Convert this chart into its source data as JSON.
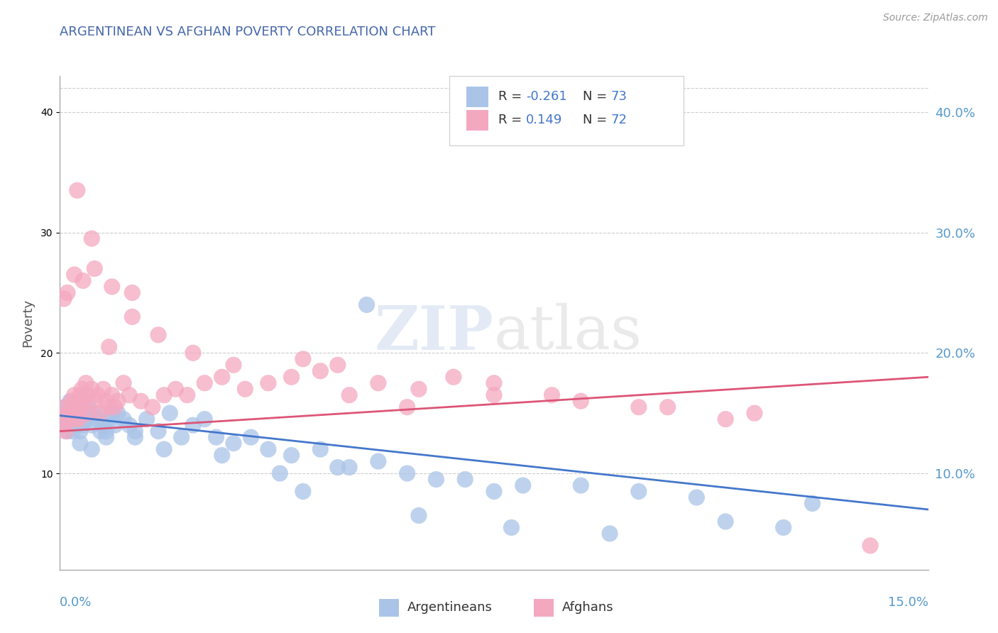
{
  "title": "ARGENTINEAN VS AFGHAN POVERTY CORRELATION CHART",
  "source": "Source: ZipAtlas.com",
  "ylabel": "Poverty",
  "xlim": [
    0.0,
    15.0
  ],
  "ylim": [
    2.0,
    43.0
  ],
  "yticks": [
    10.0,
    20.0,
    30.0,
    40.0
  ],
  "ytick_labels": [
    "10.0%",
    "20.0%",
    "30.0%",
    "40.0%"
  ],
  "blue_color": "#aac4e8",
  "pink_color": "#f4a8c0",
  "blue_line_color": "#4477cc",
  "pink_line_color": "#dd5577",
  "blue_trend_x": [
    0.0,
    15.0
  ],
  "blue_trend_y": [
    14.8,
    7.0
  ],
  "pink_trend_x": [
    0.0,
    15.0
  ],
  "pink_trend_y": [
    13.5,
    18.0
  ],
  "argentinean_x": [
    0.05,
    0.08,
    0.1,
    0.12,
    0.15,
    0.18,
    0.2,
    0.22,
    0.25,
    0.28,
    0.3,
    0.33,
    0.35,
    0.38,
    0.4,
    0.42,
    0.45,
    0.48,
    0.5,
    0.55,
    0.6,
    0.65,
    0.7,
    0.75,
    0.8,
    0.85,
    0.9,
    0.95,
    1.0,
    1.1,
    1.2,
    1.3,
    1.5,
    1.7,
    1.9,
    2.1,
    2.3,
    2.5,
    2.7,
    3.0,
    3.3,
    3.6,
    4.0,
    4.5,
    5.0,
    5.5,
    6.0,
    6.5,
    7.0,
    7.5,
    8.0,
    9.0,
    10.0,
    11.0,
    5.3,
    4.8,
    3.8,
    2.8,
    1.8,
    1.3,
    0.8,
    0.55,
    0.35,
    0.2,
    0.13,
    0.07,
    4.2,
    6.2,
    7.8,
    9.5,
    11.5,
    12.5,
    13.0
  ],
  "argentinean_y": [
    14.5,
    15.0,
    15.5,
    14.0,
    15.0,
    16.0,
    14.5,
    13.5,
    15.0,
    14.0,
    15.5,
    14.5,
    13.5,
    15.0,
    14.0,
    16.0,
    15.0,
    14.5,
    15.5,
    14.0,
    15.0,
    14.5,
    13.5,
    14.0,
    13.0,
    14.5,
    15.0,
    14.0,
    15.0,
    14.5,
    14.0,
    13.5,
    14.5,
    13.5,
    15.0,
    13.0,
    14.0,
    14.5,
    13.0,
    12.5,
    13.0,
    12.0,
    11.5,
    12.0,
    10.5,
    11.0,
    10.0,
    9.5,
    9.5,
    8.5,
    9.0,
    9.0,
    8.5,
    8.0,
    24.0,
    10.5,
    10.0,
    11.5,
    12.0,
    13.0,
    13.5,
    12.0,
    12.5,
    14.0,
    13.5,
    14.0,
    8.5,
    6.5,
    5.5,
    5.0,
    6.0,
    5.5,
    7.5
  ],
  "afghan_x": [
    0.05,
    0.08,
    0.1,
    0.12,
    0.15,
    0.18,
    0.2,
    0.22,
    0.25,
    0.28,
    0.3,
    0.33,
    0.35,
    0.38,
    0.4,
    0.42,
    0.45,
    0.48,
    0.5,
    0.55,
    0.6,
    0.65,
    0.7,
    0.75,
    0.8,
    0.85,
    0.9,
    0.95,
    1.0,
    1.1,
    1.2,
    1.4,
    1.6,
    1.8,
    2.0,
    2.2,
    2.5,
    2.8,
    3.2,
    3.6,
    4.0,
    4.5,
    5.0,
    5.5,
    6.0,
    6.8,
    7.5,
    8.5,
    10.0,
    11.5,
    3.0,
    2.3,
    1.7,
    1.25,
    0.9,
    0.6,
    0.4,
    0.25,
    0.13,
    0.07,
    4.2,
    6.2,
    7.5,
    9.0,
    10.5,
    12.0,
    14.0,
    0.3,
    0.55,
    0.85,
    1.25,
    4.8
  ],
  "afghan_y": [
    14.0,
    15.5,
    13.5,
    15.0,
    14.5,
    15.0,
    16.0,
    15.5,
    16.5,
    14.5,
    15.5,
    14.5,
    16.5,
    17.0,
    15.5,
    16.0,
    17.5,
    16.5,
    15.0,
    17.0,
    16.0,
    16.5,
    15.0,
    17.0,
    16.0,
    15.5,
    16.5,
    15.5,
    16.0,
    17.5,
    16.5,
    16.0,
    15.5,
    16.5,
    17.0,
    16.5,
    17.5,
    18.0,
    17.0,
    17.5,
    18.0,
    18.5,
    16.5,
    17.5,
    15.5,
    18.0,
    17.5,
    16.5,
    15.5,
    14.5,
    19.0,
    20.0,
    21.5,
    23.0,
    25.5,
    27.0,
    26.0,
    26.5,
    25.0,
    24.5,
    19.5,
    17.0,
    16.5,
    16.0,
    15.5,
    15.0,
    4.0,
    33.5,
    29.5,
    20.5,
    25.0,
    19.0
  ]
}
